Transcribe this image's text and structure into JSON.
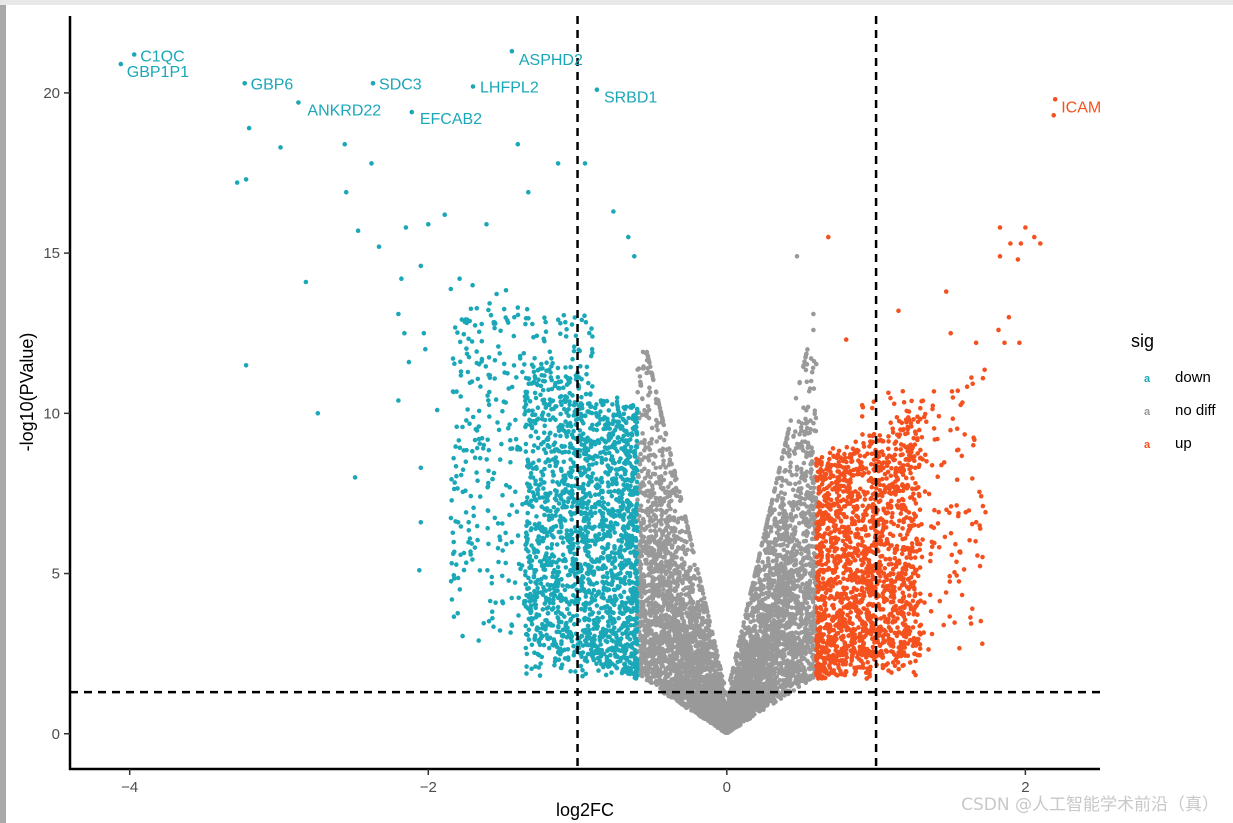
{
  "chart_data": {
    "type": "scatter",
    "title": "",
    "xlabel": "log2FC",
    "ylabel": "-log10(PValue)",
    "xlim": [
      -4.4,
      2.5
    ],
    "ylim": [
      -1.1,
      22.4
    ],
    "x_ticks": [
      {
        "value": -4,
        "label": "−4"
      },
      {
        "value": -2,
        "label": "−2"
      },
      {
        "value": 0,
        "label": "0"
      },
      {
        "value": 2,
        "label": "2"
      }
    ],
    "y_ticks": [
      {
        "value": 0,
        "label": "0"
      },
      {
        "value": 5,
        "label": "5"
      },
      {
        "value": 10,
        "label": "10"
      },
      {
        "value": 15,
        "label": "15"
      },
      {
        "value": 20,
        "label": "20"
      }
    ],
    "thresholds": {
      "log2fc": [
        -1,
        1
      ],
      "neg_log10_p": 1.3
    },
    "legend": {
      "title": "sig",
      "position": "right",
      "entries": [
        {
          "key": "down",
          "label": "down",
          "color": "#1aa7b8"
        },
        {
          "key": "nodiff",
          "label": "no diff",
          "color": "#999999"
        },
        {
          "key": "up",
          "label": "up",
          "color": "#f4511e"
        }
      ]
    },
    "labeled_points": [
      {
        "gene": "C1QC",
        "x": -3.97,
        "y": 21.2,
        "group": "down"
      },
      {
        "gene": "GBP1P1",
        "x": -4.06,
        "y": 20.9,
        "group": "down"
      },
      {
        "gene": "GBP6",
        "x": -3.23,
        "y": 20.3,
        "group": "down"
      },
      {
        "gene": "ANKRD22",
        "x": -2.87,
        "y": 19.7,
        "group": "down"
      },
      {
        "gene": "SDC3",
        "x": -2.37,
        "y": 20.3,
        "group": "down"
      },
      {
        "gene": "EFCAB2",
        "x": -2.11,
        "y": 19.4,
        "group": "down"
      },
      {
        "gene": "LHFPL2",
        "x": -1.7,
        "y": 20.2,
        "group": "down"
      },
      {
        "gene": "ASPHD2",
        "x": -1.44,
        "y": 21.3,
        "group": "down"
      },
      {
        "gene": "SRBD1",
        "x": -0.87,
        "y": 20.1,
        "group": "down"
      },
      {
        "gene": "ICAM",
        "x": 2.2,
        "y": 19.8,
        "group": "up"
      }
    ],
    "outlier_points": [
      [
        -3.2,
        18.9
      ],
      [
        -2.99,
        18.3
      ],
      [
        -2.56,
        18.4
      ],
      [
        -2.38,
        17.8
      ],
      [
        -1.4,
        18.4
      ],
      [
        -1.13,
        17.8
      ],
      [
        -0.95,
        17.8
      ],
      [
        -3.28,
        17.2
      ],
      [
        -3.22,
        17.3
      ],
      [
        -2.55,
        16.9
      ],
      [
        -2.47,
        15.7
      ],
      [
        -2.33,
        15.2
      ],
      [
        -2.15,
        15.8
      ],
      [
        -2.0,
        15.9
      ],
      [
        -1.89,
        16.2
      ],
      [
        -1.61,
        15.9
      ],
      [
        -1.33,
        16.9
      ],
      [
        -2.82,
        14.1
      ],
      [
        -2.05,
        14.6
      ],
      [
        -2.18,
        14.2
      ],
      [
        -1.79,
        14.2
      ],
      [
        -3.22,
        11.5
      ],
      [
        -2.74,
        10.0
      ],
      [
        -2.2,
        13.1
      ],
      [
        -2.16,
        12.5
      ],
      [
        -2.03,
        12.5
      ],
      [
        -2.02,
        12.0
      ],
      [
        -2.13,
        11.6
      ],
      [
        -2.2,
        10.4
      ],
      [
        -1.94,
        10.1
      ],
      [
        -2.49,
        8.0
      ],
      [
        -2.05,
        8.3
      ],
      [
        -1.83,
        8.6
      ],
      [
        -2.05,
        6.6
      ],
      [
        -1.8,
        6.6
      ],
      [
        -2.06,
        5.1
      ],
      [
        -1.66,
        9.2
      ],
      [
        -1.4,
        13.3
      ],
      [
        -1.56,
        12.8
      ],
      [
        -0.76,
        16.3
      ],
      [
        -0.66,
        15.5
      ],
      [
        -0.62,
        14.9
      ],
      [
        0.47,
        14.9
      ],
      [
        0.68,
        15.5
      ],
      [
        0.58,
        12.6
      ],
      [
        0.58,
        13.1
      ],
      [
        0.8,
        12.3
      ],
      [
        1.15,
        13.2
      ],
      [
        1.47,
        13.8
      ],
      [
        1.5,
        12.5
      ],
      [
        1.67,
        12.2
      ],
      [
        1.83,
        15.8
      ],
      [
        1.9,
        15.3
      ],
      [
        1.97,
        15.3
      ],
      [
        2.0,
        15.8
      ],
      [
        2.06,
        15.5
      ],
      [
        2.1,
        15.3
      ],
      [
        1.95,
        14.8
      ],
      [
        1.83,
        14.9
      ],
      [
        1.82,
        12.6
      ],
      [
        1.89,
        13.0
      ],
      [
        1.96,
        12.2
      ],
      [
        1.86,
        12.2
      ],
      [
        2.19,
        19.3
      ]
    ]
  }
}
